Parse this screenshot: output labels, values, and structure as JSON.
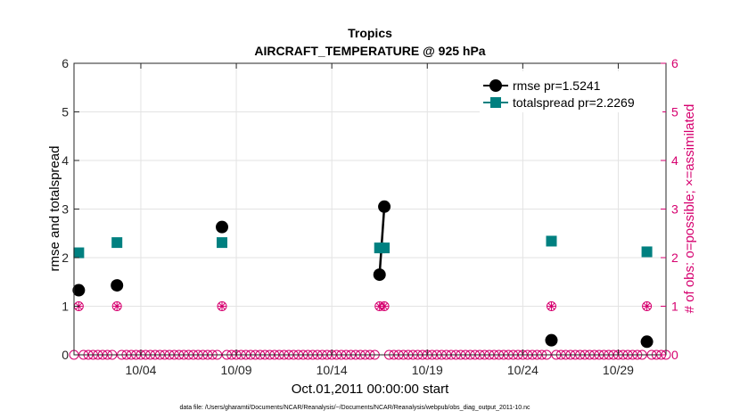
{
  "chart_data": {
    "type": "scatter",
    "title": "Tropics",
    "subtitle": "AIRCRAFT_TEMPERATURE @ 925 hPa",
    "xlabel": "Oct.01,2011 00:00:00 start",
    "ylabel": "rmse and totalspread",
    "ylabel_right": "# of obs: o=possible; ×=assimilated",
    "footnote": "data file: /Users/gharamti/Documents/NCAR/Reanalysis/~/Documents/NCAR/Reanalysis/webpub/obs_diag_output_2011-10.nc",
    "xlim": [
      0.5,
      31.5
    ],
    "ylim": [
      0,
      6
    ],
    "ylim_right": [
      0,
      6
    ],
    "x_ticks": [
      4,
      9,
      14,
      19,
      24,
      29
    ],
    "x_tick_labels": [
      "10/04",
      "10/09",
      "10/14",
      "10/19",
      "10/24",
      "10/29"
    ],
    "y_ticks": [
      0,
      1,
      2,
      3,
      4,
      5,
      6
    ],
    "y_tick_labels": [
      "0",
      "1",
      "2",
      "3",
      "4",
      "5",
      "6"
    ],
    "y_right_tick_labels": [
      "0",
      "1",
      "2",
      "3",
      "4",
      "5",
      "6"
    ],
    "grid": true,
    "legend_position": "top-right",
    "series": [
      {
        "name": "rmse pr=1.5241",
        "color": "#000000",
        "marker": "circle",
        "points": [
          [
            0.75,
            1.33
          ],
          [
            2.75,
            1.43
          ],
          [
            8.25,
            2.63
          ],
          [
            16.5,
            1.65
          ],
          [
            16.75,
            3.05
          ],
          [
            25.5,
            0.3
          ],
          [
            30.5,
            0.27
          ]
        ]
      },
      {
        "name": "totalspread pr=2.2269",
        "color": "#008080",
        "marker": "square",
        "points": [
          [
            0.75,
            2.1
          ],
          [
            2.75,
            2.31
          ],
          [
            8.25,
            2.31
          ],
          [
            16.5,
            2.2
          ],
          [
            16.75,
            2.2
          ],
          [
            25.5,
            2.34
          ],
          [
            30.5,
            2.12
          ]
        ]
      }
    ],
    "obs_counts": {
      "color": "#D6006F",
      "possible_marker": "circle-open",
      "assimilated_marker": "x",
      "x_start": 0.5,
      "x_step": 0.25,
      "x_end": 31.5,
      "zero_value": 0,
      "nonzero_points": [
        [
          0.75,
          1
        ],
        [
          2.75,
          1
        ],
        [
          8.25,
          1
        ],
        [
          16.5,
          1
        ],
        [
          16.75,
          1
        ],
        [
          25.5,
          1
        ],
        [
          30.5,
          1
        ]
      ]
    }
  }
}
